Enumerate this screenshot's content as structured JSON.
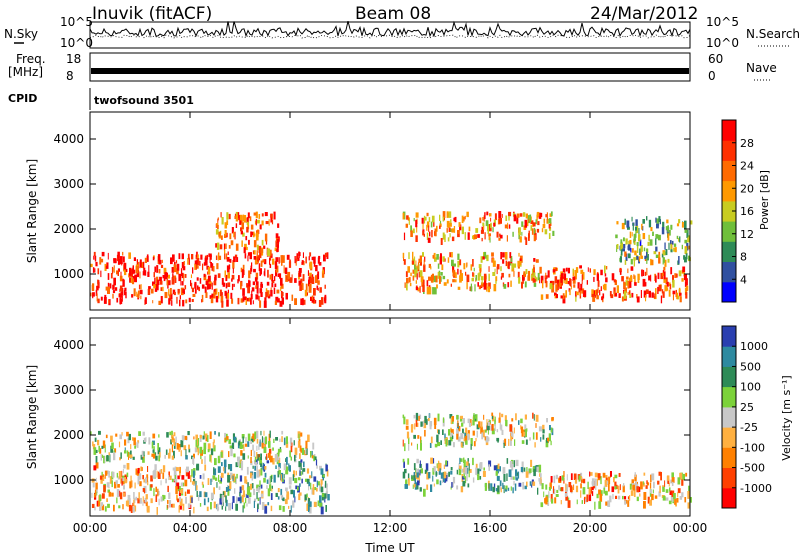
{
  "header": {
    "station": "Inuvik (fitACF)",
    "beam": "Beam 08",
    "date": "24/Mar/2012"
  },
  "ancillary": {
    "nsky_label": "N.Sky",
    "nsearch_label": "N.Search",
    "freq_label": "Freq.",
    "freq_unit": "[MHz]",
    "nave_label": "Nave",
    "cpid_label": "CPID",
    "cpid_value": "twofsound 3501",
    "noise_left_ticks": [
      "10^5",
      "10^0"
    ],
    "noise_right_ticks": [
      "10^5",
      "10^0"
    ],
    "freq_ticks": [
      "18",
      "8"
    ],
    "nave_ticks": [
      "60",
      "0"
    ]
  },
  "colors": {
    "power_scale": [
      "#0000ff",
      "#3050a0",
      "#2e8b57",
      "#6fbf3a",
      "#c8cc20",
      "#ff9900",
      "#ff6a00",
      "#ff3000",
      "#ff0000"
    ],
    "velocity_scale": [
      "#2a3fb0",
      "#2e8aa0",
      "#2e8b57",
      "#7cd23a",
      "#c8c8c8",
      "#ffb040",
      "#ff8000",
      "#ff4000",
      "#ff0000"
    ]
  },
  "chart_data": [
    {
      "type": "heatmap",
      "title": "",
      "xlabel": "",
      "ylabel": "Slant Range [km]",
      "x_ticks": [
        "00:00",
        "04:00",
        "08:00",
        "12:00",
        "16:00",
        "20:00",
        "00:00"
      ],
      "y_ticks": [
        1000,
        2000,
        3000,
        4000
      ],
      "ylim": [
        200,
        4600
      ],
      "colorbar": {
        "label": "Power [dB]",
        "ticks": [
          4,
          8,
          12,
          16,
          20,
          24,
          28
        ],
        "range": [
          0,
          30
        ]
      },
      "scatter_regions": [
        {
          "t_start": 0.0,
          "t_end": 9.5,
          "r_min": 400,
          "r_max": 1500,
          "level": 28
        },
        {
          "t_start": 5.0,
          "t_end": 7.5,
          "r_min": 1500,
          "r_max": 2400,
          "level": 24
        },
        {
          "t_start": 12.5,
          "t_end": 18.5,
          "r_min": 1800,
          "r_max": 2400,
          "level": 20
        },
        {
          "t_start": 12.5,
          "t_end": 18.0,
          "r_min": 700,
          "r_max": 1500,
          "level": 20
        },
        {
          "t_start": 18.0,
          "t_end": 24.0,
          "r_min": 500,
          "r_max": 1200,
          "level": 24
        },
        {
          "t_start": 21.0,
          "t_end": 24.0,
          "r_min": 1300,
          "r_max": 2300,
          "level": 12
        }
      ]
    },
    {
      "type": "heatmap",
      "title": "",
      "xlabel": "Time UT",
      "ylabel": "Slant Range [km]",
      "x_ticks": [
        "00:00",
        "04:00",
        "08:00",
        "12:00",
        "16:00",
        "20:00",
        "00:00"
      ],
      "y_ticks": [
        1000,
        2000,
        3000,
        4000
      ],
      "ylim": [
        200,
        4600
      ],
      "colorbar": {
        "label": "Velocity [m s⁻¹]",
        "ticks": [
          "1000",
          "500",
          "100",
          "25",
          "-25",
          "-100",
          "-500",
          "-1000"
        ],
        "range": [
          -1000,
          1000
        ]
      },
      "scatter_regions": [
        {
          "t_start": 0.0,
          "t_end": 4.0,
          "r_min": 400,
          "r_max": 1400,
          "level": -300
        },
        {
          "t_start": 4.0,
          "t_end": 9.5,
          "r_min": 400,
          "r_max": 1500,
          "level": 300
        },
        {
          "t_start": 0.0,
          "t_end": 9.0,
          "r_min": 1500,
          "r_max": 2100,
          "level": 0
        },
        {
          "t_start": 12.5,
          "t_end": 18.5,
          "r_min": 1800,
          "r_max": 2500,
          "level": 0
        },
        {
          "t_start": 12.5,
          "t_end": 18.0,
          "r_min": 800,
          "r_max": 1500,
          "level": 300
        },
        {
          "t_start": 18.0,
          "t_end": 24.0,
          "r_min": 500,
          "r_max": 1200,
          "level": -300
        }
      ]
    }
  ]
}
